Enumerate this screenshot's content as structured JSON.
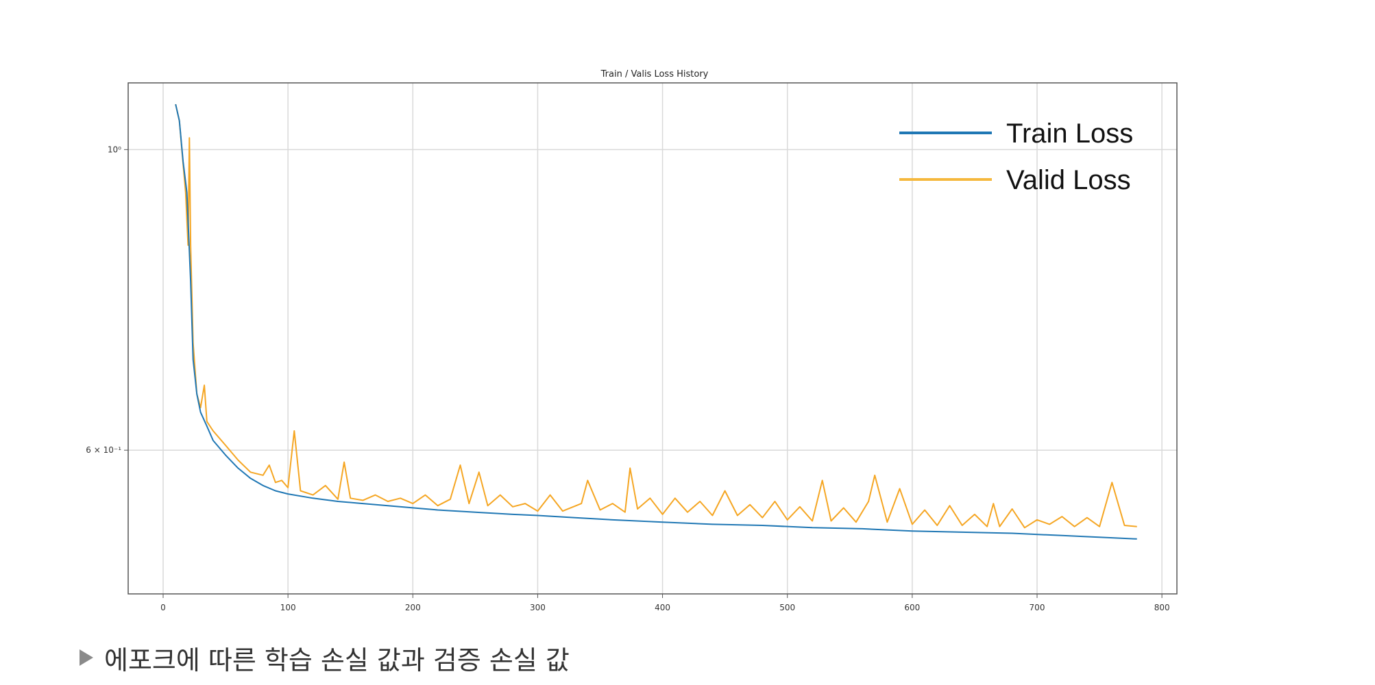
{
  "chart_data": {
    "type": "line",
    "title": "Train / Valis Loss History",
    "xlabel": "",
    "ylabel": "",
    "y_scale": "log",
    "xlim": [
      -28,
      812
    ],
    "ylim": [
      0.47,
      1.12
    ],
    "x_ticks": [
      0,
      100,
      200,
      300,
      400,
      500,
      600,
      700,
      800
    ],
    "y_tick_labels": [
      {
        "value": 1.0,
        "label": "10⁰"
      },
      {
        "value": 0.6,
        "label": "6 × 10⁻¹"
      }
    ],
    "grid": true,
    "legend_position": "top-right",
    "series": [
      {
        "name": "Train Loss",
        "color": "#1f77b4",
        "x": [
          10,
          13,
          16,
          19,
          22,
          24,
          27,
          30,
          35,
          40,
          50,
          60,
          70,
          80,
          90,
          100,
          120,
          140,
          160,
          180,
          200,
          220,
          250,
          280,
          300,
          330,
          360,
          400,
          440,
          480,
          520,
          560,
          600,
          640,
          680,
          720,
          760,
          780
        ],
        "y": [
          1.08,
          1.05,
          0.98,
          0.93,
          0.8,
          0.7,
          0.66,
          0.64,
          0.625,
          0.61,
          0.595,
          0.582,
          0.572,
          0.565,
          0.56,
          0.557,
          0.553,
          0.55,
          0.548,
          0.546,
          0.544,
          0.542,
          0.54,
          0.538,
          0.537,
          0.535,
          0.533,
          0.531,
          0.529,
          0.528,
          0.526,
          0.525,
          0.523,
          0.522,
          0.521,
          0.519,
          0.517,
          0.516
        ]
      },
      {
        "name": "Valid Loss",
        "color": "#f5a623",
        "x": [
          10,
          13,
          15,
          18,
          20,
          21,
          22,
          24,
          27,
          30,
          33,
          35,
          40,
          50,
          60,
          70,
          80,
          85,
          90,
          95,
          100,
          105,
          110,
          120,
          130,
          140,
          145,
          150,
          160,
          170,
          180,
          190,
          200,
          210,
          220,
          230,
          238,
          245,
          253,
          260,
          270,
          280,
          290,
          300,
          310,
          320,
          335,
          340,
          350,
          360,
          370,
          374,
          380,
          390,
          400,
          410,
          420,
          430,
          440,
          450,
          460,
          470,
          480,
          490,
          500,
          510,
          520,
          528,
          535,
          545,
          555,
          565,
          570,
          580,
          590,
          600,
          610,
          620,
          630,
          640,
          650,
          660,
          665,
          670,
          680,
          690,
          700,
          710,
          720,
          730,
          740,
          750,
          760,
          770,
          780
        ],
        "y": [
          1.08,
          1.05,
          1.0,
          0.93,
          0.85,
          1.02,
          0.85,
          0.72,
          0.66,
          0.645,
          0.67,
          0.63,
          0.62,
          0.605,
          0.59,
          0.578,
          0.575,
          0.585,
          0.568,
          0.57,
          0.563,
          0.62,
          0.56,
          0.556,
          0.565,
          0.552,
          0.588,
          0.553,
          0.551,
          0.556,
          0.55,
          0.553,
          0.548,
          0.556,
          0.546,
          0.552,
          0.585,
          0.548,
          0.578,
          0.546,
          0.556,
          0.545,
          0.548,
          0.541,
          0.556,
          0.541,
          0.548,
          0.57,
          0.542,
          0.548,
          0.54,
          0.582,
          0.543,
          0.553,
          0.538,
          0.553,
          0.54,
          0.55,
          0.537,
          0.56,
          0.537,
          0.547,
          0.535,
          0.55,
          0.533,
          0.545,
          0.532,
          0.57,
          0.532,
          0.544,
          0.531,
          0.55,
          0.575,
          0.531,
          0.562,
          0.529,
          0.542,
          0.528,
          0.546,
          0.528,
          0.538,
          0.527,
          0.548,
          0.527,
          0.543,
          0.526,
          0.533,
          0.529,
          0.536,
          0.527,
          0.535,
          0.527,
          0.568,
          0.528,
          0.527
        ]
      }
    ]
  },
  "caption": {
    "text": "에포크에 따른 학습 손실 값과 검증 손실 값"
  }
}
